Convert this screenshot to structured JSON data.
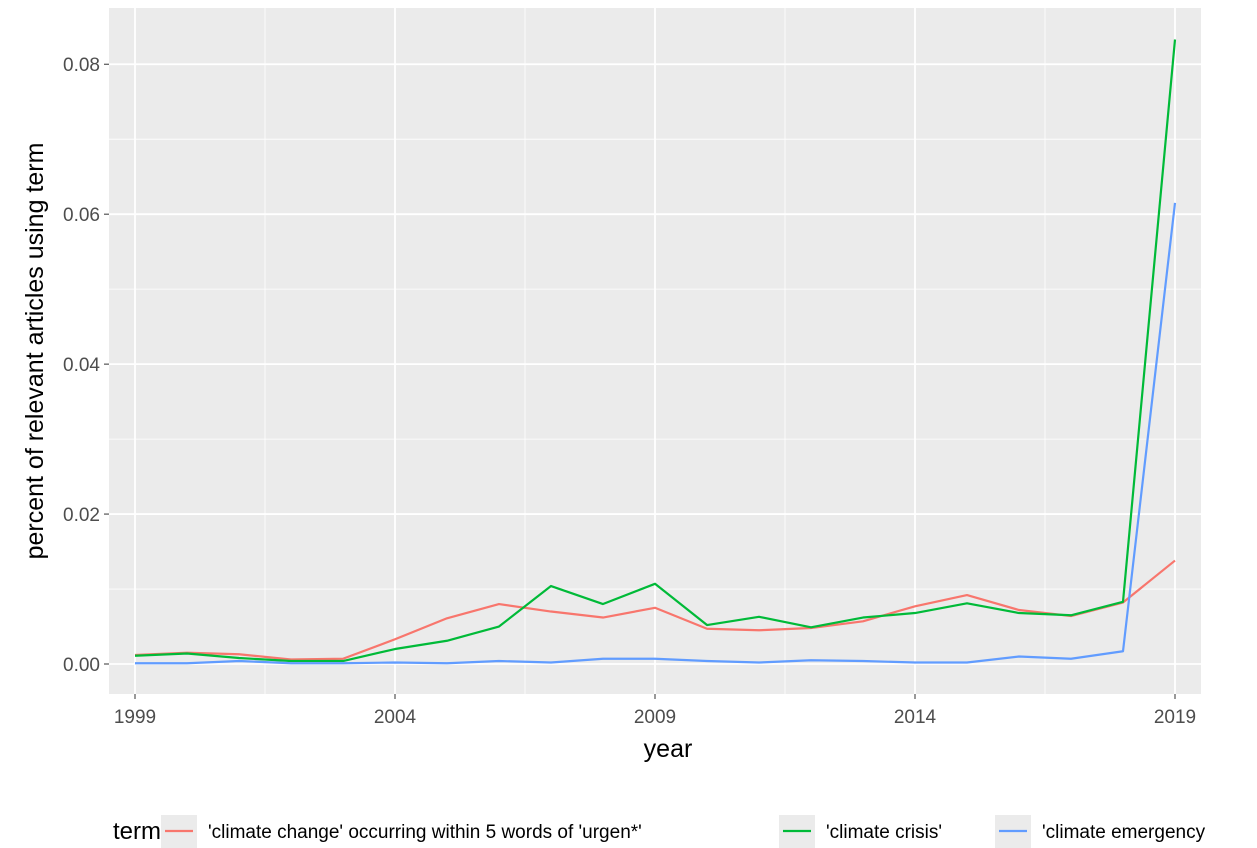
{
  "chart_data": {
    "type": "line",
    "title": "",
    "xlabel": "year",
    "ylabel": "percent of relevant articles using term",
    "xlim": [
      1998.5,
      2019.5
    ],
    "ylim": [
      -0.004,
      0.0875
    ],
    "x_ticks": [
      1999,
      2004,
      2009,
      2014,
      2019
    ],
    "x_tick_labels": [
      "1999",
      "2004",
      "2009",
      "2014",
      "2019"
    ],
    "y_ticks": [
      0,
      0.02,
      0.04,
      0.06,
      0.08
    ],
    "y_tick_labels": [
      "0.00",
      "0.02",
      "0.04",
      "0.06",
      "0.08"
    ],
    "grid": true,
    "panel_background": "#ebebeb",
    "legend": {
      "title": "term",
      "position": "bottom"
    },
    "x": [
      1999,
      2000,
      2001,
      2002,
      2003,
      2004,
      2005,
      2006,
      2007,
      2008,
      2009,
      2010,
      2011,
      2012,
      2013,
      2014,
      2015,
      2016,
      2017,
      2018,
      2019
    ],
    "series": [
      {
        "name": "'climate change' occurring within 5 words of 'urgen*'",
        "color": "#f8766d",
        "values": [
          0.0012,
          0.0015,
          0.0013,
          0.0006,
          0.0007,
          0.0033,
          0.0061,
          0.008,
          0.007,
          0.0062,
          0.0075,
          0.0047,
          0.0045,
          0.0048,
          0.0057,
          0.0077,
          0.0092,
          0.0072,
          0.0064,
          0.0082,
          0.0138
        ]
      },
      {
        "name": "'climate crisis'",
        "color": "#00ba38",
        "values": [
          0.0011,
          0.0014,
          0.0008,
          0.0004,
          0.0004,
          0.002,
          0.0031,
          0.005,
          0.0104,
          0.008,
          0.0107,
          0.0052,
          0.0063,
          0.0049,
          0.0062,
          0.0068,
          0.0081,
          0.0068,
          0.0065,
          0.0083,
          0.0833
        ]
      },
      {
        "name": "'climate emergency",
        "color": "#619cff",
        "values": [
          0.0001,
          0.0001,
          0.0004,
          0.0001,
          0.0001,
          0.0002,
          0.0001,
          0.0004,
          0.0002,
          0.0007,
          0.0007,
          0.0004,
          0.0002,
          0.0005,
          0.0004,
          0.0002,
          0.0002,
          0.001,
          0.0007,
          0.0017,
          0.0615
        ]
      }
    ]
  }
}
